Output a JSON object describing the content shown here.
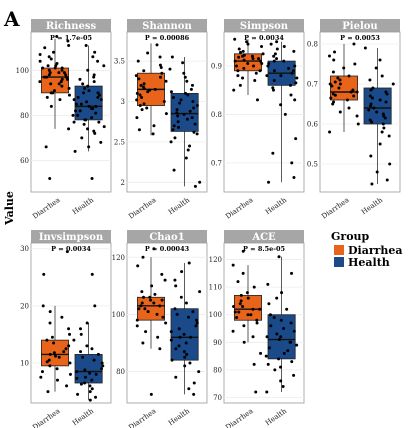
{
  "figure_letter": "A",
  "y_axis_label": "Value",
  "legend": {
    "title": "Group",
    "items": [
      {
        "label": "Diarrhea",
        "color": "#e8641b"
      },
      {
        "label": "Health",
        "color": "#1a4a8a"
      }
    ]
  },
  "colors": {
    "strip_bg": "#a6a6a6",
    "panel_border": "#9a9a9a",
    "grid": "#ececec"
  },
  "chart_data": [
    {
      "type": "box",
      "title": "Richness",
      "p_value_label": "P = 1.7e-05",
      "categories": [
        "Diarrhea",
        "Health"
      ],
      "ylim": [
        46,
        117
      ],
      "yticks": [
        60,
        80,
        100
      ],
      "series": [
        {
          "name": "Diarrhea",
          "box": {
            "q1": 90,
            "median": 97,
            "q3": 101,
            "whisker_low": 74,
            "whisker_high": 114
          },
          "points": [
            52,
            66,
            74,
            84,
            87,
            88,
            89,
            90,
            90,
            91,
            92,
            93,
            94,
            94,
            95,
            95,
            96,
            96,
            97,
            97,
            97,
            98,
            98,
            99,
            99,
            99,
            100,
            100,
            101,
            101,
            101,
            102,
            102,
            103,
            104,
            105,
            106,
            107,
            108,
            110,
            111,
            113,
            115
          ]
        },
        {
          "name": "Health",
          "box": {
            "q1": 78,
            "median": 84,
            "q3": 93,
            "whisker_low": 64,
            "whisker_high": 111
          },
          "points": [
            52,
            64,
            66,
            68,
            70,
            72,
            73,
            74,
            75,
            76,
            77,
            77,
            78,
            78,
            79,
            80,
            80,
            81,
            82,
            82,
            83,
            83,
            84,
            84,
            85,
            85,
            86,
            87,
            87,
            88,
            88,
            89,
            90,
            90,
            91,
            92,
            93,
            94,
            95,
            96,
            97,
            98,
            100,
            102,
            104,
            106,
            108,
            111
          ]
        }
      ]
    },
    {
      "type": "box",
      "title": "Shannon",
      "p_value_label": "P = 0.00086",
      "categories": [
        "Diarrhea",
        "Health"
      ],
      "ylim": [
        1.88,
        3.86
      ],
      "yticks": [
        2.0,
        2.5,
        3.0,
        3.5
      ],
      "series": [
        {
          "name": "Diarrhea",
          "box": {
            "q1": 2.95,
            "median": 3.15,
            "q3": 3.35,
            "whisker_low": 2.58,
            "whisker_high": 3.72
          },
          "points": [
            2.6,
            2.65,
            2.7,
            2.8,
            2.85,
            2.9,
            2.92,
            2.95,
            2.97,
            3.0,
            3.02,
            3.05,
            3.08,
            3.1,
            3.12,
            3.14,
            3.15,
            3.16,
            3.18,
            3.2,
            3.22,
            3.25,
            3.28,
            3.3,
            3.32,
            3.35,
            3.38,
            3.42,
            3.45,
            3.5,
            3.55,
            3.6,
            3.7
          ]
        },
        {
          "name": "Health",
          "box": {
            "q1": 2.63,
            "median": 2.85,
            "q3": 3.1,
            "whisker_low": 1.95,
            "whisker_high": 3.55
          },
          "points": [
            1.95,
            2.0,
            2.15,
            2.3,
            2.4,
            2.45,
            2.5,
            2.55,
            2.6,
            2.62,
            2.65,
            2.68,
            2.7,
            2.72,
            2.75,
            2.78,
            2.8,
            2.82,
            2.84,
            2.86,
            2.88,
            2.9,
            2.92,
            2.95,
            2.98,
            3.0,
            3.02,
            3.05,
            3.08,
            3.1,
            3.12,
            3.15,
            3.2,
            3.25,
            3.3,
            3.35,
            3.4,
            3.48,
            3.55
          ]
        }
      ]
    },
    {
      "type": "box",
      "title": "Simpson",
      "p_value_label": "P = 0.0034",
      "categories": [
        "Diarrhea",
        "Health"
      ],
      "ylim": [
        0.64,
        0.97
      ],
      "yticks": [
        0.7,
        0.8,
        0.9
      ],
      "series": [
        {
          "name": "Diarrhea",
          "box": {
            "q1": 0.89,
            "median": 0.91,
            "q3": 0.925,
            "whisker_low": 0.84,
            "whisker_high": 0.955
          },
          "points": [
            0.83,
            0.85,
            0.86,
            0.87,
            0.875,
            0.88,
            0.885,
            0.89,
            0.89,
            0.895,
            0.9,
            0.9,
            0.905,
            0.905,
            0.91,
            0.91,
            0.912,
            0.915,
            0.915,
            0.918,
            0.92,
            0.92,
            0.922,
            0.925,
            0.928,
            0.93,
            0.935,
            0.94,
            0.945,
            0.95,
            0.955
          ]
        },
        {
          "name": "Health",
          "box": {
            "q1": 0.86,
            "median": 0.885,
            "q3": 0.91,
            "whisker_low": 0.66,
            "whisker_high": 0.95
          },
          "points": [
            0.66,
            0.67,
            0.7,
            0.72,
            0.75,
            0.8,
            0.82,
            0.83,
            0.84,
            0.85,
            0.855,
            0.86,
            0.865,
            0.87,
            0.875,
            0.88,
            0.88,
            0.885,
            0.89,
            0.89,
            0.895,
            0.9,
            0.9,
            0.905,
            0.91,
            0.91,
            0.915,
            0.92,
            0.925,
            0.93,
            0.935,
            0.94,
            0.945,
            0.95
          ]
        }
      ]
    },
    {
      "type": "box",
      "title": "Pielou",
      "p_value_label": "P = 0.0053",
      "categories": [
        "Diarrhea",
        "Health"
      ],
      "ylim": [
        0.43,
        0.83
      ],
      "yticks": [
        0.5,
        0.6,
        0.7,
        0.8
      ],
      "series": [
        {
          "name": "Diarrhea",
          "box": {
            "q1": 0.66,
            "median": 0.68,
            "q3": 0.72,
            "whisker_low": 0.58,
            "whisker_high": 0.8
          },
          "points": [
            0.58,
            0.6,
            0.62,
            0.63,
            0.64,
            0.65,
            0.655,
            0.66,
            0.665,
            0.67,
            0.672,
            0.675,
            0.68,
            0.68,
            0.685,
            0.69,
            0.695,
            0.7,
            0.7,
            0.705,
            0.71,
            0.715,
            0.72,
            0.73,
            0.74,
            0.75,
            0.76,
            0.77,
            0.78,
            0.8
          ]
        },
        {
          "name": "Health",
          "box": {
            "q1": 0.6,
            "median": 0.64,
            "q3": 0.69,
            "whisker_low": 0.45,
            "whisker_high": 0.79
          },
          "points": [
            0.45,
            0.46,
            0.48,
            0.5,
            0.52,
            0.55,
            0.57,
            0.58,
            0.59,
            0.6,
            0.605,
            0.61,
            0.615,
            0.62,
            0.625,
            0.63,
            0.635,
            0.64,
            0.645,
            0.65,
            0.655,
            0.66,
            0.665,
            0.67,
            0.675,
            0.68,
            0.685,
            0.69,
            0.7,
            0.71,
            0.72,
            0.74,
            0.76,
            0.79
          ]
        }
      ]
    },
    {
      "type": "box",
      "title": "Invsimpson",
      "p_value_label": "P = 0.0034",
      "categories": [
        "Diarrhea",
        "Health"
      ],
      "ylim": [
        3,
        31
      ],
      "yticks": [
        10,
        20,
        30
      ],
      "series": [
        {
          "name": "Diarrhea",
          "box": {
            "q1": 9.5,
            "median": 11.5,
            "q3": 14,
            "whisker_low": 5,
            "whisker_high": 20
          },
          "points": [
            5,
            6,
            7,
            7.5,
            8,
            8.5,
            9,
            9.5,
            10,
            10.2,
            10.5,
            11,
            11.2,
            11.5,
            11.8,
            12,
            12.5,
            13,
            13.5,
            14,
            14.5,
            15,
            16,
            17,
            18,
            19,
            20,
            25.5,
            29.5
          ]
        },
        {
          "name": "Health",
          "box": {
            "q1": 6.5,
            "median": 8.5,
            "q3": 11.5,
            "whisker_low": 3.5,
            "whisker_high": 17
          },
          "points": [
            3.5,
            4,
            4.5,
            5,
            5.5,
            6,
            6.3,
            6.5,
            7,
            7.3,
            7.5,
            8,
            8.2,
            8.5,
            8.8,
            9,
            9.5,
            10,
            10.5,
            11,
            11.5,
            12,
            12.5,
            13,
            14,
            15,
            16,
            17,
            20,
            25.5
          ]
        }
      ]
    },
    {
      "type": "box",
      "title": "Chao1",
      "p_value_label": "P = 0.00043",
      "categories": [
        "Diarrhea",
        "Health"
      ],
      "ylim": [
        69,
        125
      ],
      "yticks": [
        80,
        100,
        120
      ],
      "series": [
        {
          "name": "Diarrhea",
          "box": {
            "q1": 98,
            "median": 103,
            "q3": 106,
            "whisker_low": 88,
            "whisker_high": 120
          },
          "points": [
            72,
            88,
            90,
            92,
            94,
            96,
            97,
            98,
            99,
            100,
            101,
            102,
            102,
            103,
            103,
            104,
            104,
            105,
            105,
            106,
            106,
            107,
            108,
            110,
            112,
            114,
            117,
            120,
            123
          ]
        },
        {
          "name": "Health",
          "box": {
            "q1": 84,
            "median": 92,
            "q3": 102,
            "whisker_low": 72,
            "whisker_high": 118
          },
          "points": [
            72,
            74,
            76,
            78,
            80,
            82,
            83,
            84,
            85,
            86,
            87,
            88,
            89,
            90,
            91,
            92,
            92,
            93,
            94,
            95,
            96,
            97,
            98,
            99,
            100,
            101,
            102,
            104,
            106,
            108,
            110,
            112,
            115,
            118
          ]
        }
      ]
    },
    {
      "type": "box",
      "title": "ACE",
      "p_value_label": "P = 8.5e-05",
      "categories": [
        "Diarrhea",
        "Health"
      ],
      "ylim": [
        68,
        126
      ],
      "yticks": [
        70,
        80,
        90,
        100,
        110,
        120
      ],
      "series": [
        {
          "name": "Diarrhea",
          "box": {
            "q1": 98,
            "median": 102,
            "q3": 107,
            "whisker_low": 90,
            "whisker_high": 118
          },
          "points": [
            72,
            82,
            86,
            90,
            92,
            94,
            96,
            97,
            98,
            99,
            100,
            100,
            101,
            101,
            102,
            102,
            103,
            103,
            104,
            105,
            106,
            107,
            108,
            110,
            112,
            115,
            118,
            123
          ]
        },
        {
          "name": "Health",
          "box": {
            "q1": 84,
            "median": 91,
            "q3": 100,
            "whisker_low": 72,
            "whisker_high": 121
          },
          "points": [
            72,
            74,
            76,
            78,
            80,
            81,
            82,
            83,
            84,
            85,
            86,
            87,
            88,
            89,
            90,
            90,
            91,
            92,
            92,
            93,
            94,
            95,
            96,
            97,
            98,
            99,
            100,
            102,
            104,
            106,
            108,
            111,
            115,
            121
          ]
        }
      ]
    }
  ]
}
